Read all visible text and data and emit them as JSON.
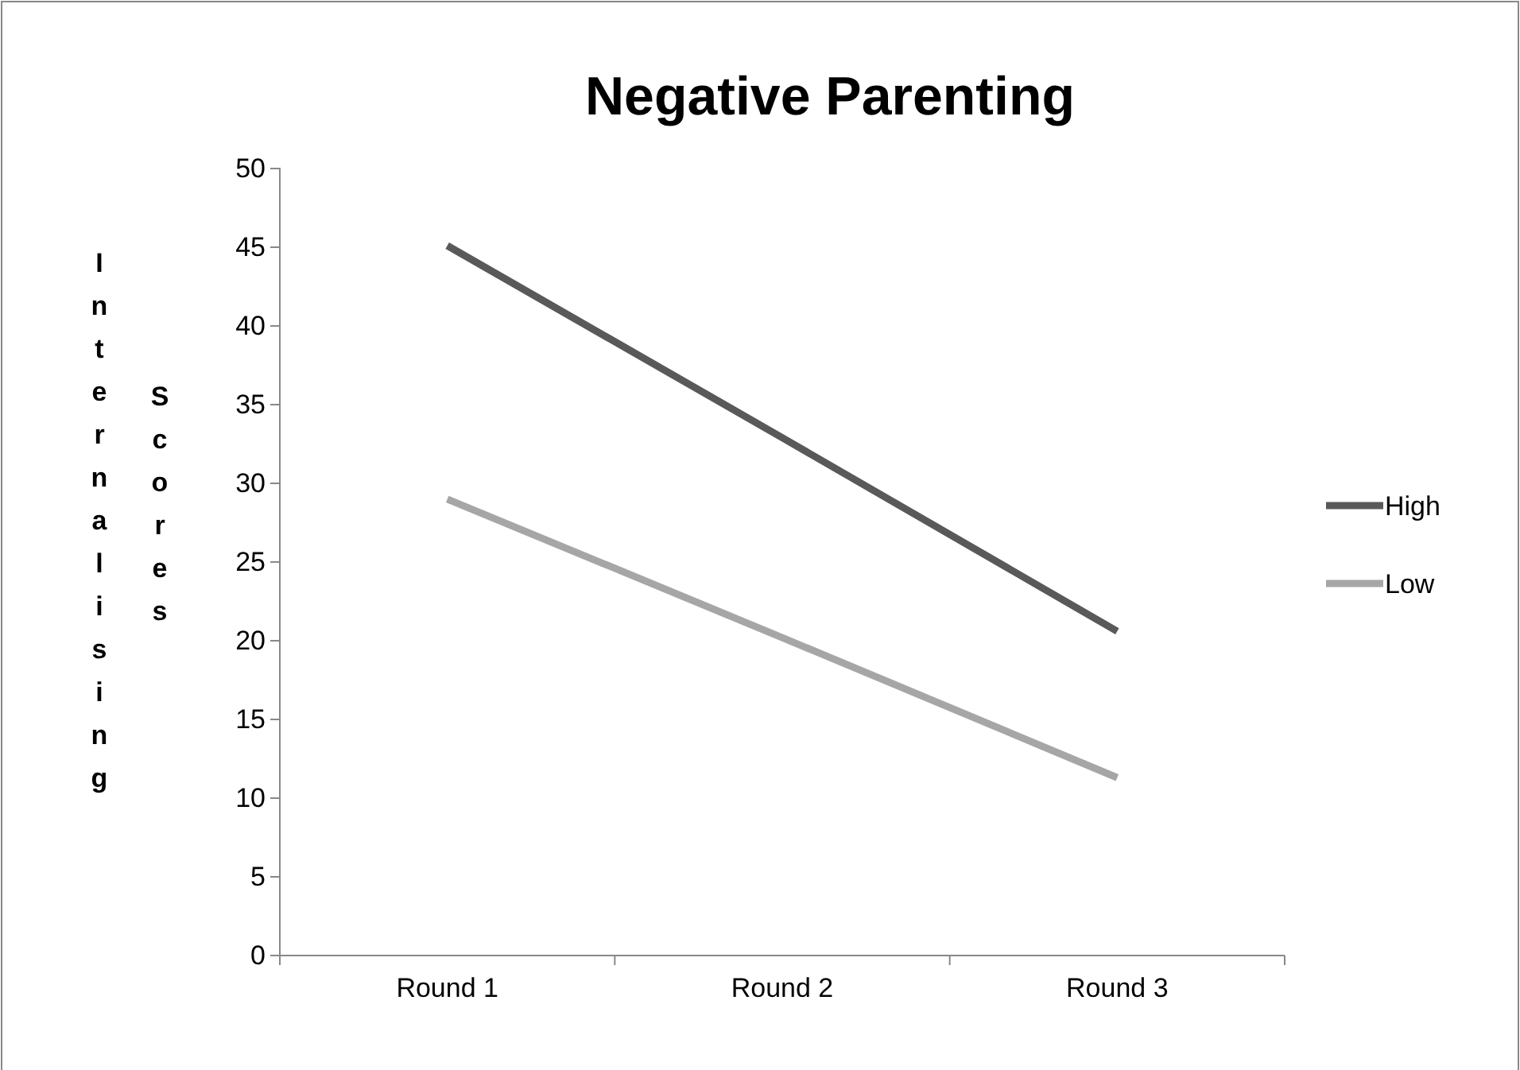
{
  "chart_data": {
    "type": "line",
    "title": "Negative Parenting",
    "ylabel": "Internalising Scores",
    "categories": [
      "Round 1",
      "Round 2",
      "Round 3"
    ],
    "series": [
      {
        "name": "High",
        "color": "#595959",
        "values": [
          45.1,
          32.9,
          20.6
        ]
      },
      {
        "name": "Low",
        "color": "#a6a6a6",
        "values": [
          29,
          20.2,
          11.3
        ]
      }
    ],
    "ylim": [
      0,
      50
    ],
    "yticks": [
      0,
      5,
      10,
      15,
      20,
      25,
      30,
      35,
      40,
      45,
      50
    ],
    "grid": false,
    "legend": "right",
    "marker": "none",
    "line_style": "solid"
  }
}
